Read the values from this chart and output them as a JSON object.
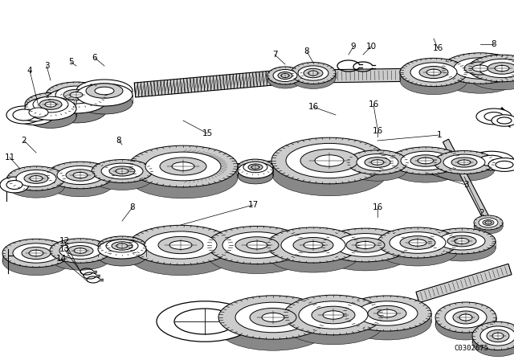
{
  "background_color": "#ffffff",
  "catalog_number": "C0302675",
  "line_color": "#000000",
  "gray_fill": "#aaaaaa",
  "light_gray": "#dddddd",
  "white": "#ffffff"
}
